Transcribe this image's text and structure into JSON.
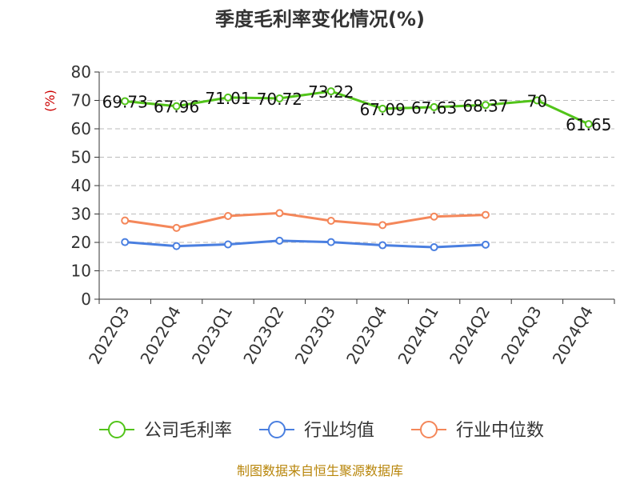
{
  "chart_data": {
    "type": "line",
    "title": "季度毛利率变化情况(%)",
    "ylabel": "(%)",
    "ylim": [
      0,
      80
    ],
    "yticks": [
      0,
      10,
      20,
      30,
      40,
      50,
      60,
      70,
      80
    ],
    "grid": true,
    "legend_position": "bottom",
    "categories": [
      "2022Q3",
      "2022Q4",
      "2023Q1",
      "2023Q2",
      "2023Q3",
      "2023Q4",
      "2024Q1",
      "2024Q2",
      "2024Q3",
      "2024Q4"
    ],
    "series": [
      {
        "name": "公司毛利率",
        "color": "#52c41a",
        "values": [
          69.73,
          67.96,
          71.01,
          70.72,
          73.22,
          67.09,
          67.63,
          68.37,
          70,
          61.65
        ],
        "labels": [
          "69.73",
          "67.96",
          "71.01",
          "70.72",
          "73.22",
          "67.09",
          "67.63",
          "68.37",
          "70",
          "61.65"
        ]
      },
      {
        "name": "行业均值",
        "color": "#4a7fe0",
        "values": [
          20.1,
          18.7,
          19.3,
          20.6,
          20.1,
          19.0,
          18.3,
          19.2,
          null,
          null
        ]
      },
      {
        "name": "行业中位数",
        "color": "#f4875a",
        "values": [
          27.7,
          25.1,
          29.3,
          30.3,
          27.6,
          26.1,
          29.1,
          29.7,
          null,
          null
        ]
      }
    ]
  },
  "source": "制图数据来自恒生聚源数据库"
}
